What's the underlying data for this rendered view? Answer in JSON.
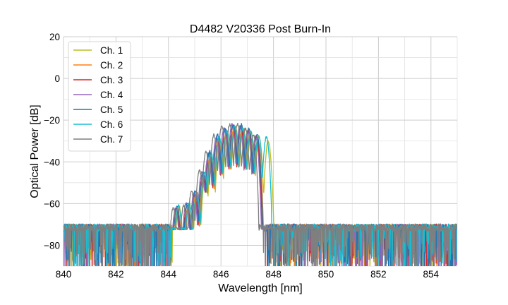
{
  "chart_data": {
    "type": "line",
    "title": "D4482 V20336 Post Burn-In",
    "xlabel": "Wavelength [nm]",
    "ylabel": "Optical Power [dB]",
    "xlim": [
      840,
      855
    ],
    "ylim": [
      -90,
      20
    ],
    "xticks": [
      840,
      842,
      844,
      846,
      848,
      850,
      852,
      854
    ],
    "xtick_labels": [
      "840",
      "842",
      "844",
      "846",
      "848",
      "850",
      "852",
      "854"
    ],
    "yticks": [
      -80,
      -60,
      -40,
      -20,
      0,
      20
    ],
    "ytick_labels": [
      "−80",
      "−60",
      "−40",
      "−20",
      "0",
      "20"
    ],
    "grid": true,
    "legend_position": "top-left",
    "noise_floor_db": -73,
    "series": [
      {
        "name": "Ch. 1",
        "color": "#bcbd22",
        "shift_nm": 0.1,
        "peaks": [
          [
            844.3,
            -61
          ],
          [
            844.7,
            -60
          ],
          [
            845.0,
            -55
          ],
          [
            845.3,
            -47
          ],
          [
            845.55,
            -38
          ],
          [
            845.85,
            -30
          ],
          [
            846.15,
            -27
          ],
          [
            846.45,
            -23
          ],
          [
            846.75,
            -24
          ],
          [
            847.05,
            -26
          ],
          [
            847.35,
            -28
          ],
          [
            847.7,
            -30
          ]
        ],
        "edge_nm": 847.95
      },
      {
        "name": "Ch. 2",
        "color": "#ff7f0e",
        "shift_nm": 0.05,
        "peaks": [
          [
            844.3,
            -62
          ],
          [
            844.7,
            -61
          ],
          [
            845.0,
            -55
          ],
          [
            845.3,
            -46
          ],
          [
            845.55,
            -37
          ],
          [
            845.85,
            -29
          ],
          [
            846.15,
            -26
          ],
          [
            846.45,
            -23
          ],
          [
            846.75,
            -24
          ],
          [
            847.05,
            -26
          ],
          [
            847.35,
            -29
          ]
        ],
        "edge_nm": 847.75
      },
      {
        "name": "Ch. 3",
        "color": "#d62728",
        "shift_nm": 0.0,
        "peaks": [
          [
            844.3,
            -62
          ],
          [
            844.7,
            -61
          ],
          [
            845.0,
            -56
          ],
          [
            845.3,
            -46
          ],
          [
            845.55,
            -36
          ],
          [
            845.85,
            -29
          ],
          [
            846.15,
            -25
          ],
          [
            846.45,
            -23
          ],
          [
            846.75,
            -23
          ],
          [
            847.05,
            -25
          ],
          [
            847.35,
            -28
          ]
        ],
        "edge_nm": 847.7
      },
      {
        "name": "Ch. 4",
        "color": "#9467bd",
        "shift_nm": -0.03,
        "peaks": [
          [
            844.3,
            -62
          ],
          [
            844.7,
            -60
          ],
          [
            845.0,
            -55
          ],
          [
            845.3,
            -45
          ],
          [
            845.55,
            -36
          ],
          [
            845.85,
            -28
          ],
          [
            846.15,
            -24
          ],
          [
            846.45,
            -22
          ],
          [
            846.75,
            -23
          ],
          [
            847.05,
            -25
          ],
          [
            847.35,
            -28
          ]
        ],
        "edge_nm": 847.65
      },
      {
        "name": "Ch. 5",
        "color": "#1f77b4",
        "shift_nm": 0.02,
        "peaks": [
          [
            844.3,
            -61
          ],
          [
            844.7,
            -60
          ],
          [
            845.0,
            -54
          ],
          [
            845.3,
            -45
          ],
          [
            845.55,
            -35
          ],
          [
            845.85,
            -27
          ],
          [
            846.15,
            -24
          ],
          [
            846.45,
            -22
          ],
          [
            846.75,
            -22
          ],
          [
            847.05,
            -24
          ],
          [
            847.35,
            -27
          ]
        ],
        "edge_nm": 847.7
      },
      {
        "name": "Ch. 6",
        "color": "#17becf",
        "shift_nm": 0.08,
        "peaks": [
          [
            844.3,
            -61
          ],
          [
            844.7,
            -60
          ],
          [
            845.0,
            -55
          ],
          [
            845.3,
            -45
          ],
          [
            845.55,
            -36
          ],
          [
            845.85,
            -28
          ],
          [
            846.15,
            -25
          ],
          [
            846.45,
            -23
          ],
          [
            846.75,
            -24
          ],
          [
            847.05,
            -25
          ],
          [
            847.35,
            -27
          ],
          [
            847.65,
            -28
          ]
        ],
        "edge_nm": 847.85
      },
      {
        "name": "Ch. 7",
        "color": "#7f7f7f",
        "shift_nm": -0.12,
        "peaks": [
          [
            844.3,
            -62
          ],
          [
            844.7,
            -61
          ],
          [
            845.0,
            -54
          ],
          [
            845.3,
            -44
          ],
          [
            845.55,
            -35
          ],
          [
            845.85,
            -27
          ],
          [
            846.15,
            -23
          ],
          [
            846.45,
            -22
          ],
          [
            846.75,
            -22
          ],
          [
            847.05,
            -24
          ],
          [
            847.35,
            -27
          ]
        ],
        "edge_nm": 847.55
      }
    ]
  }
}
